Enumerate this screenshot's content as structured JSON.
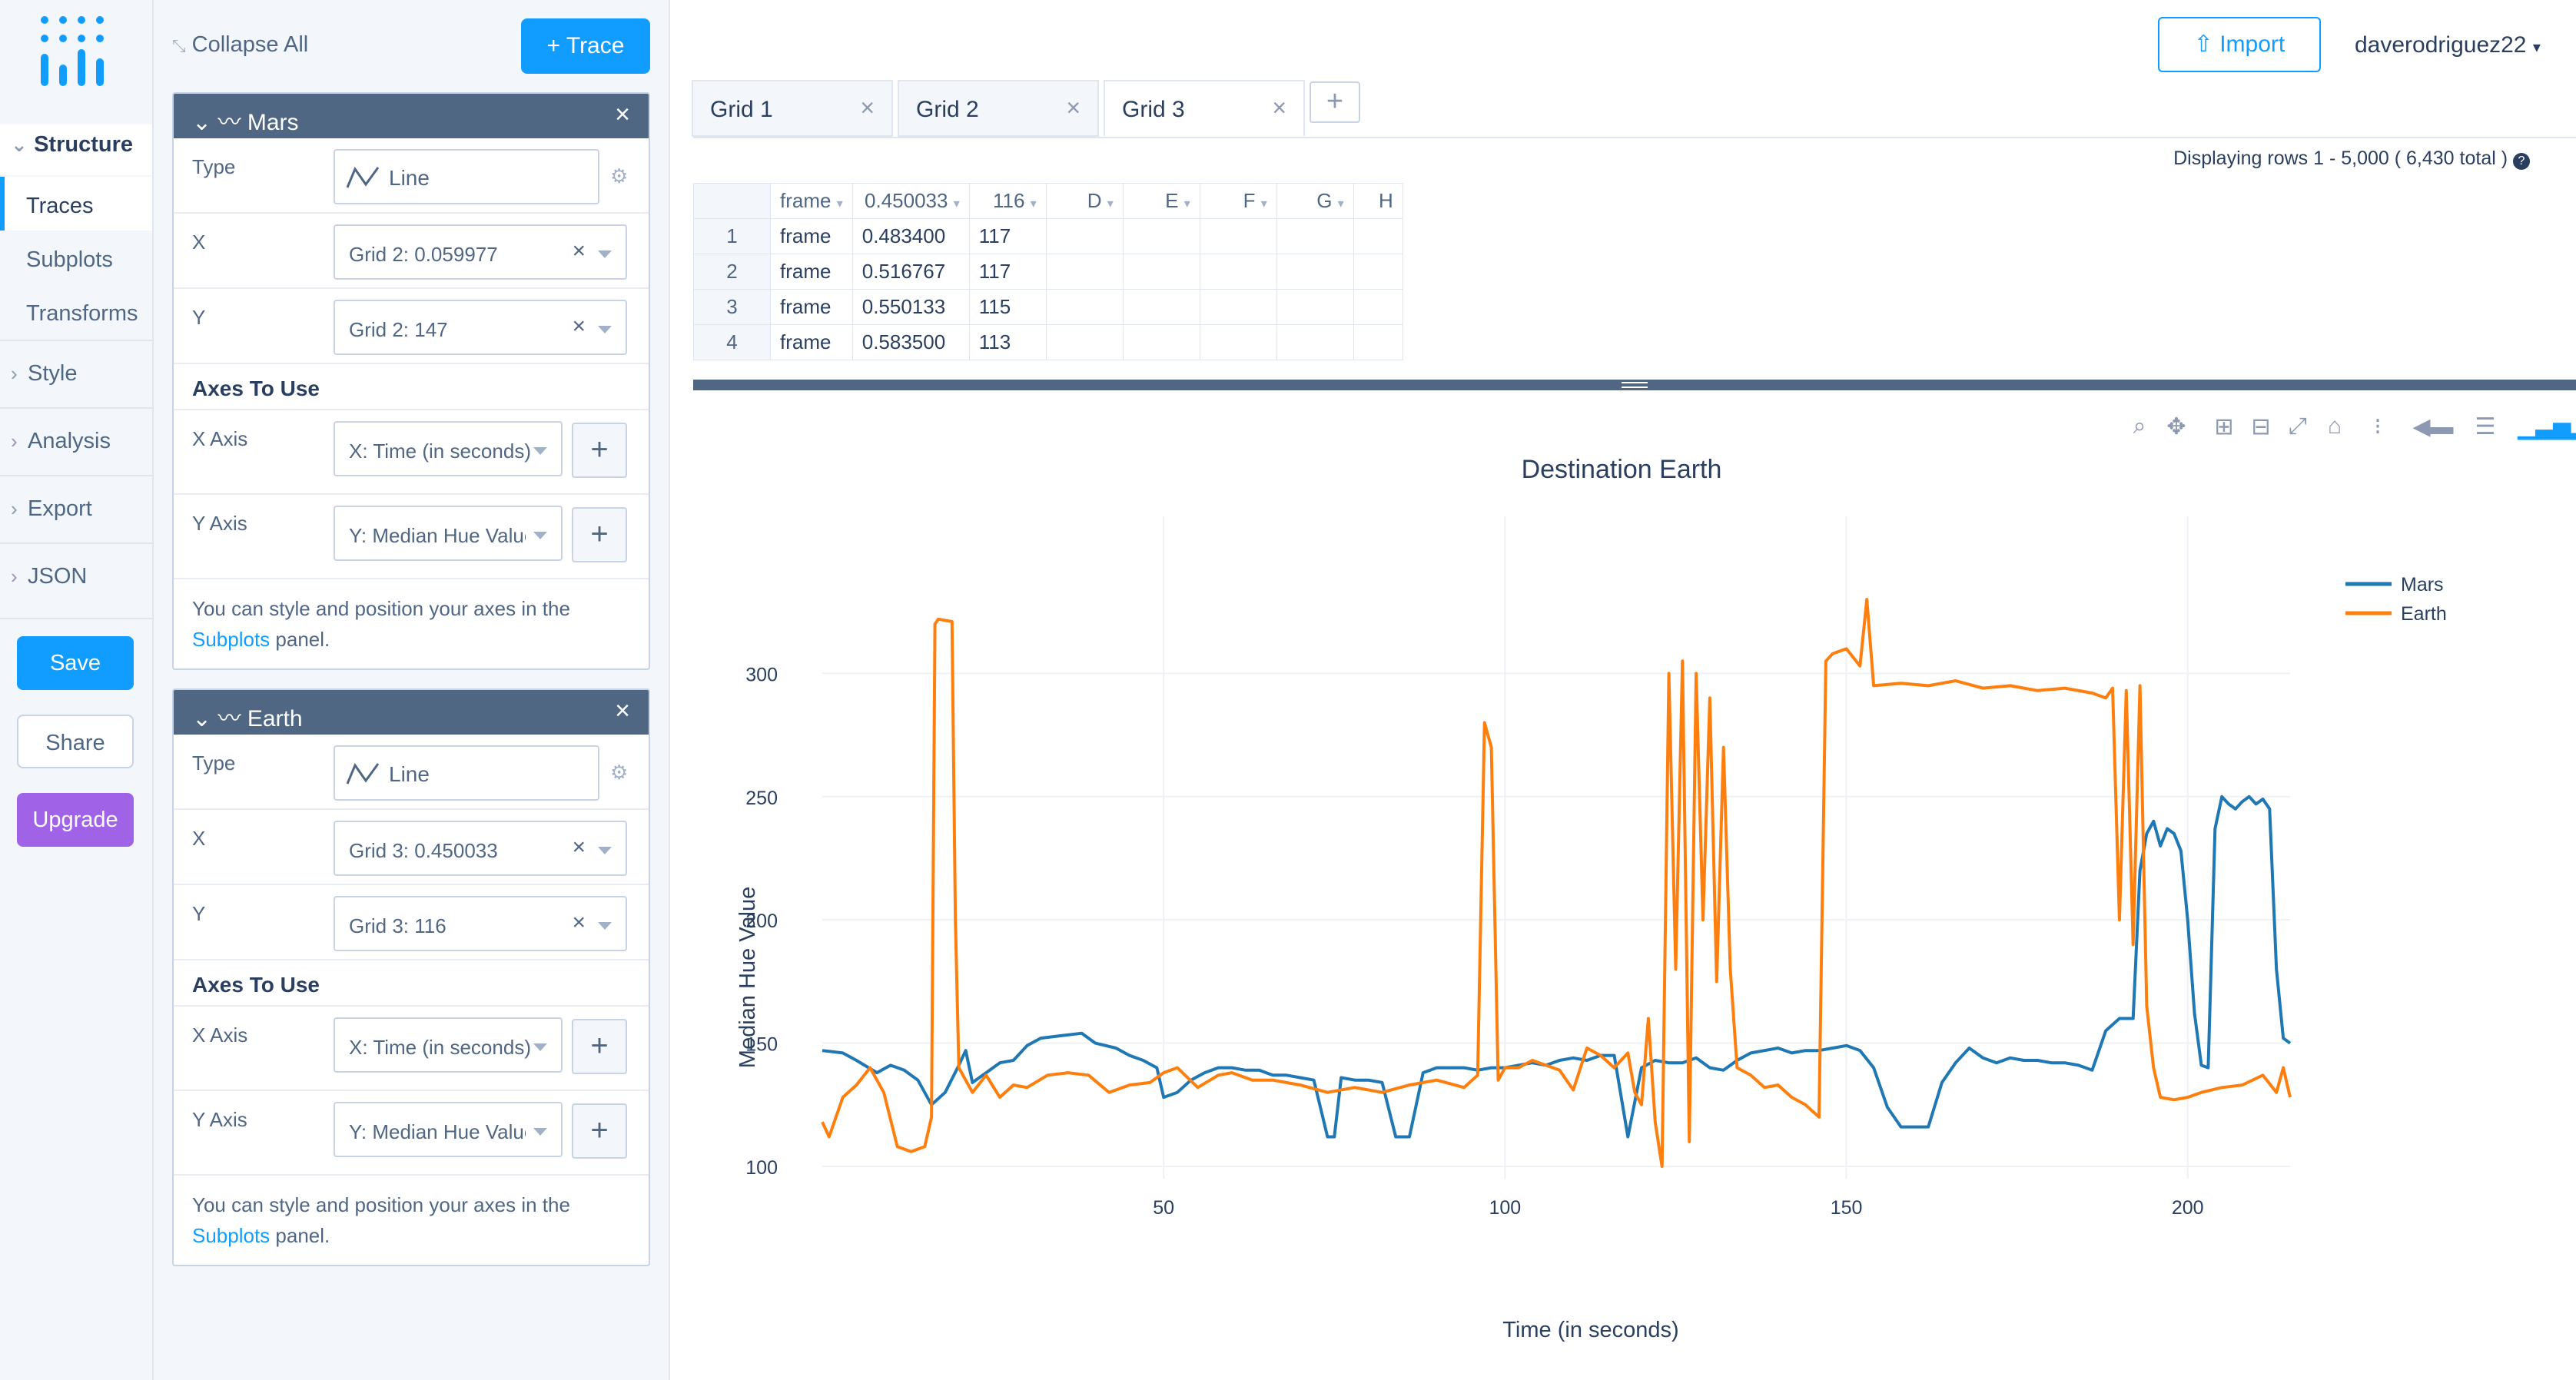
{
  "nav": {
    "structure_label": "Structure",
    "items": [
      "Traces",
      "Subplots",
      "Transforms"
    ],
    "groups": [
      "Style",
      "Analysis",
      "Export",
      "JSON"
    ],
    "save_label": "Save",
    "share_label": "Share",
    "upgrade_label": "Upgrade"
  },
  "panel": {
    "collapse_all": "Collapse All",
    "add_trace": "+ Trace",
    "type_label": "Type",
    "x_label": "X",
    "y_label": "Y",
    "axes_heading": "Axes To Use",
    "x_axis_label": "X Axis",
    "y_axis_label": "Y Axis",
    "note_text": "You can style and position your axes in the",
    "note_link": "Subplots",
    "note_suffix": "panel.",
    "traces": [
      {
        "name": "Mars",
        "type": "Line",
        "x": "Grid 2: 0.059977",
        "y": "Grid 2: 147",
        "x_axis": "X: Time (in seconds)",
        "y_axis": "Y: Median Hue Value"
      },
      {
        "name": "Earth",
        "type": "Line",
        "x": "Grid 3: 0.450033",
        "y": "Grid 3: 116",
        "x_axis": "X: Time (in seconds)",
        "y_axis": "Y: Median Hue Value"
      }
    ]
  },
  "topbar": {
    "import_label": "Import",
    "username": "daverodriguez22"
  },
  "grid": {
    "tabs": [
      "Grid 1",
      "Grid 2",
      "Grid 3"
    ],
    "active_tab": 2,
    "rows_info": "Displaying rows 1 - 5,000 ( 6,430 total )",
    "columns": [
      "frame",
      "0.450033",
      "116",
      "D",
      "E",
      "F",
      "G",
      "H"
    ],
    "rows": [
      [
        "1",
        "frame",
        "0.483400",
        "117"
      ],
      [
        "2",
        "frame",
        "0.516767",
        "117"
      ],
      [
        "3",
        "frame",
        "0.550133",
        "115"
      ],
      [
        "4",
        "frame",
        "0.583500",
        "113"
      ]
    ]
  },
  "chart_data": {
    "type": "line",
    "title": "Destination Earth",
    "xlabel": "Time (in seconds)",
    "ylabel": "Median Hue Value",
    "xlim": [
      0,
      215
    ],
    "ylim": [
      95,
      345
    ],
    "xticks": [
      50,
      100,
      150,
      200
    ],
    "yticks": [
      100,
      150,
      200,
      250,
      300
    ],
    "legend": "top-right",
    "grid": true,
    "series": [
      {
        "name": "Mars",
        "color": "#1f77b4",
        "x": [
          0,
          3,
          5,
          8,
          10,
          12,
          14,
          16,
          18,
          20,
          21,
          22,
          24,
          26,
          28,
          30,
          32,
          35,
          38,
          40,
          43,
          45,
          47,
          49,
          50,
          52,
          54,
          56,
          58,
          60,
          62,
          64,
          66,
          68,
          70,
          72,
          74,
          75,
          76,
          78,
          80,
          82,
          84,
          86,
          88,
          90,
          92,
          94,
          96,
          98,
          100,
          102,
          104,
          106,
          108,
          110,
          112,
          114,
          116,
          118,
          120,
          122,
          124,
          126,
          128,
          130,
          132,
          134,
          136,
          138,
          140,
          142,
          144,
          146,
          148,
          150,
          152,
          154,
          156,
          158,
          160,
          162,
          164,
          166,
          168,
          170,
          172,
          174,
          176,
          178,
          180,
          182,
          184,
          186,
          188,
          190,
          191,
          192,
          193,
          194,
          195,
          196,
          197,
          198,
          199,
          200,
          201,
          202,
          203,
          204,
          205,
          206,
          207,
          208,
          209,
          210,
          211,
          212,
          213,
          214,
          215
        ],
        "y": [
          147,
          146,
          143,
          138,
          141,
          139,
          135,
          125,
          130,
          141,
          147,
          134,
          138,
          142,
          143,
          149,
          152,
          153,
          154,
          150,
          148,
          145,
          143,
          140,
          128,
          130,
          135,
          138,
          140,
          140,
          139,
          139,
          137,
          137,
          136,
          135,
          112,
          112,
          136,
          135,
          135,
          134,
          112,
          112,
          138,
          140,
          140,
          140,
          139,
          140,
          140,
          141,
          142,
          141,
          143,
          144,
          143,
          145,
          145,
          112,
          140,
          143,
          142,
          142,
          144,
          140,
          139,
          143,
          146,
          147,
          148,
          146,
          147,
          147,
          148,
          149,
          147,
          140,
          124,
          116,
          116,
          116,
          134,
          142,
          148,
          144,
          142,
          144,
          143,
          143,
          142,
          142,
          141,
          139,
          155,
          160,
          160,
          160,
          220,
          235,
          240,
          230,
          237,
          235,
          228,
          200,
          162,
          141,
          140,
          237,
          250,
          247,
          245,
          248,
          250,
          247,
          249,
          245,
          180,
          152,
          150
        ]
      },
      {
        "name": "Earth",
        "color": "#ff7f0e",
        "x": [
          0,
          1,
          3,
          5,
          7,
          9,
          11,
          13,
          15,
          16,
          16.5,
          17,
          19,
          19.5,
          20,
          22,
          24,
          26,
          28,
          30,
          33,
          36,
          39,
          42,
          45,
          48,
          50,
          52,
          55,
          58,
          60,
          63,
          66,
          70,
          74,
          78,
          82,
          86,
          90,
          94,
          96,
          97,
          98,
          99,
          100,
          102,
          104,
          106,
          108,
          110,
          112,
          114,
          116,
          118,
          119,
          120,
          121,
          122,
          123,
          124,
          125,
          126,
          127,
          128,
          129,
          130,
          131,
          132,
          133,
          134,
          136,
          138,
          140,
          142,
          144,
          146,
          147,
          148,
          150,
          152,
          153,
          154,
          158,
          162,
          166,
          170,
          174,
          178,
          182,
          186,
          188,
          189,
          190,
          191,
          192,
          193,
          194,
          195,
          196,
          198,
          200,
          202,
          205,
          208,
          211,
          213,
          214,
          215
        ],
        "y": [
          118,
          112,
          128,
          133,
          140,
          130,
          108,
          106,
          108,
          120,
          320,
          322,
          321,
          200,
          140,
          130,
          137,
          128,
          133,
          132,
          137,
          138,
          137,
          130,
          133,
          134,
          138,
          140,
          132,
          137,
          138,
          135,
          135,
          133,
          130,
          132,
          130,
          133,
          135,
          132,
          137,
          280,
          270,
          135,
          140,
          140,
          143,
          141,
          139,
          131,
          148,
          145,
          140,
          146,
          130,
          125,
          160,
          118,
          100,
          300,
          180,
          305,
          110,
          300,
          200,
          290,
          175,
          270,
          180,
          140,
          137,
          132,
          133,
          128,
          125,
          120,
          305,
          308,
          310,
          303,
          330,
          295,
          296,
          295,
          297,
          294,
          295,
          293,
          294,
          292,
          290,
          294,
          200,
          293,
          190,
          295,
          165,
          140,
          128,
          127,
          128,
          130,
          132,
          133,
          137,
          130,
          140,
          128
        ]
      }
    ]
  }
}
